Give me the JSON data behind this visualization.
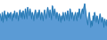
{
  "values": [
    52,
    45,
    38,
    55,
    35,
    48,
    58,
    42,
    50,
    38,
    55,
    45,
    52,
    42,
    55,
    48,
    38,
    52,
    45,
    58,
    48,
    42,
    55,
    48,
    38,
    52,
    60,
    45,
    55,
    42,
    58,
    50,
    42,
    62,
    52,
    42,
    65,
    55,
    48,
    62,
    52,
    42,
    55,
    48,
    38,
    52,
    60,
    50,
    42,
    55,
    45,
    60,
    50,
    40,
    55,
    48,
    38,
    52,
    60,
    50,
    42,
    55,
    65,
    55,
    45,
    60,
    50,
    40,
    68,
    58,
    48,
    62,
    52,
    42,
    55,
    48,
    38,
    52,
    45,
    35,
    48,
    40,
    55,
    45,
    38,
    55,
    48,
    40,
    58,
    48,
    38,
    62,
    52,
    42,
    55,
    48,
    38,
    48,
    55,
    45,
    38,
    55,
    45,
    62,
    52,
    42,
    55,
    62,
    52,
    65,
    72,
    60,
    48,
    38,
    30,
    45,
    55,
    40,
    25,
    38,
    28,
    48,
    38,
    55,
    45,
    35,
    48,
    42,
    32,
    42,
    52,
    42,
    35,
    45,
    38,
    25,
    42,
    35,
    28,
    40
  ],
  "fill_color": "#5b9bd5",
  "line_color": "#2176ae",
  "background_color": "#ffffff",
  "ylim_min": 0,
  "ylim_max": 80
}
